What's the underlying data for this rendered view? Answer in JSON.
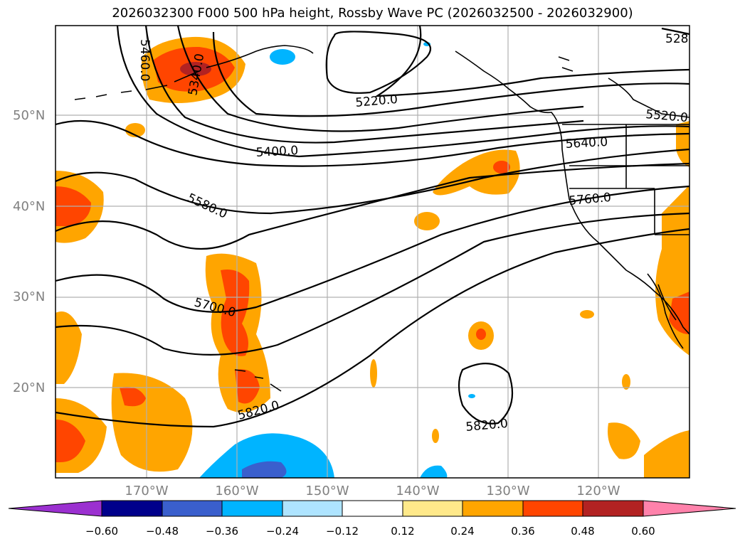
{
  "title": "2026032300 F000 500 hPa height, Rossby Wave PC (2026032500 - 2026032900)",
  "lat_labels": [
    "50°N",
    "40°N",
    "30°N",
    "20°N"
  ],
  "lon_labels": [
    "170°W",
    "160°W",
    "150°W",
    "140°W",
    "130°W",
    "120°W"
  ],
  "contour_labels": [
    "5460.0",
    "5340.0",
    "5220.0",
    "5400.0",
    "5580.0",
    "5700.0",
    "5820.0",
    "5820.0",
    "5520.0",
    "5640.0",
    "5760.0",
    "528"
  ],
  "colorbar": {
    "ticks": [
      "−0.60",
      "−0.48",
      "−0.36",
      "−0.24",
      "−0.12",
      "0.12",
      "0.24",
      "0.36",
      "0.48",
      "0.60"
    ],
    "colors": [
      "#9b30d0",
      "#00008b",
      "#3a5fcd",
      "#00b4ff",
      "#aee4ff",
      "#ffffff",
      "#ffe98a",
      "#ffa500",
      "#ff4500",
      "#b22222",
      "#ff82ab"
    ]
  }
}
